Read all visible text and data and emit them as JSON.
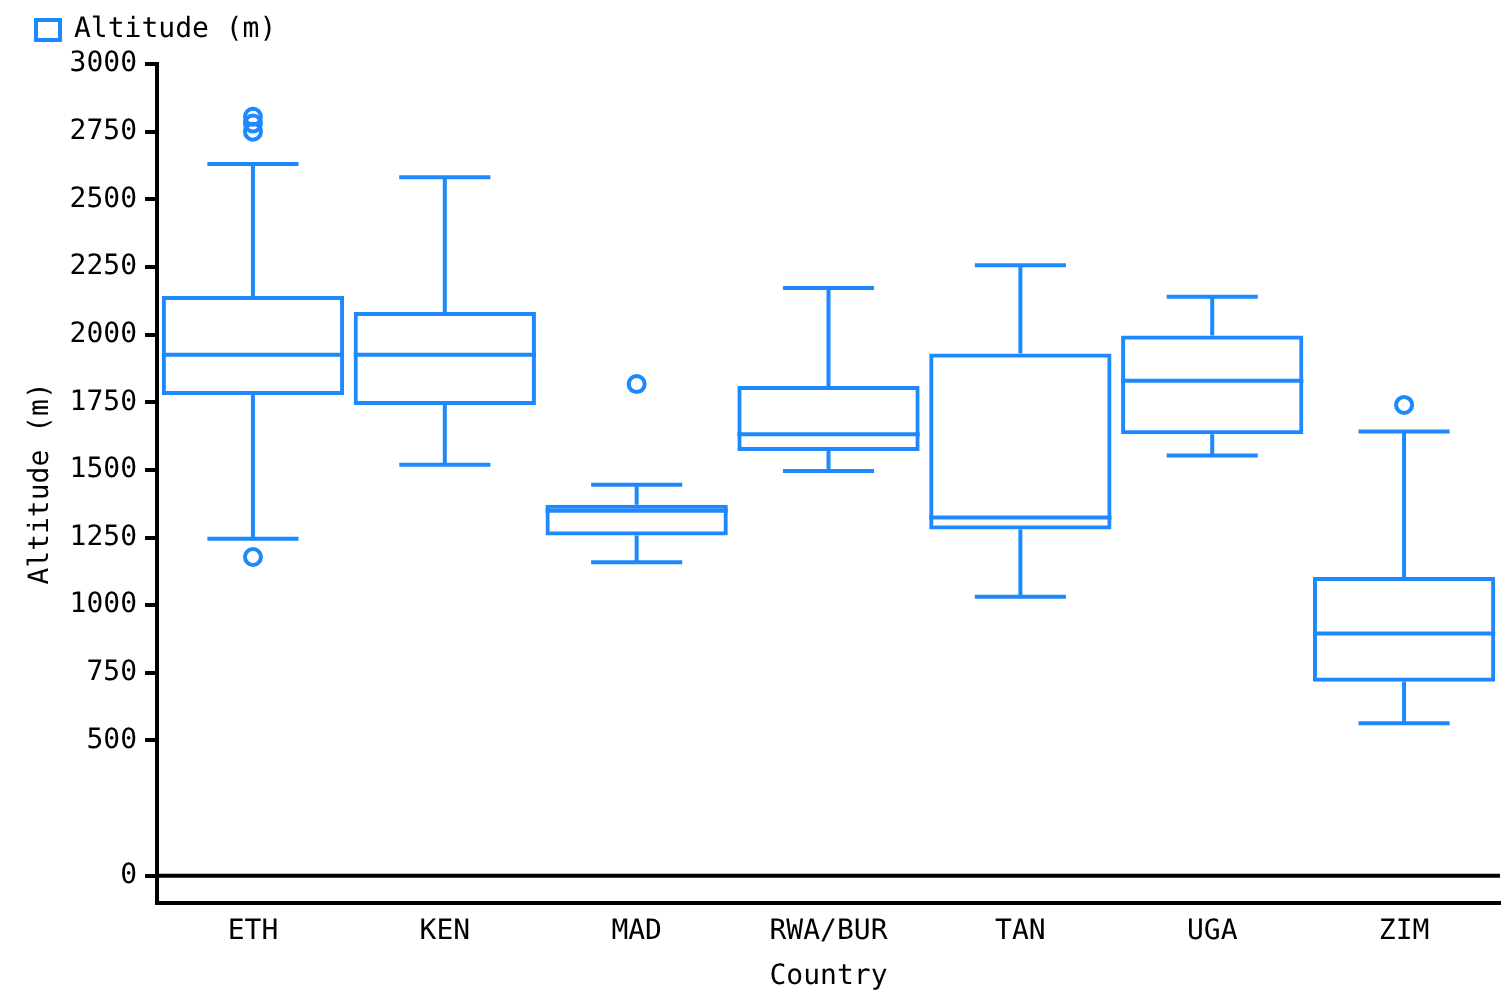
{
  "chart_data": {
    "type": "box",
    "xlabel": "Country",
    "ylabel": "Altitude (m)",
    "categories": [
      "ETH",
      "KEN",
      "MAD",
      "RWA/BUR",
      "TAN",
      "UGA",
      "ZIM"
    ],
    "series": [
      {
        "name": "Altitude (m)",
        "color": "#1e88ff",
        "boxes": [
          {
            "low": 1245,
            "q1": 1777,
            "median": 1925,
            "q3": 2143,
            "high": 2630,
            "outliers": [
              1178,
              2750,
              2780,
              2805
            ]
          },
          {
            "low": 1519,
            "q1": 1740,
            "median": 1925,
            "q3": 2083,
            "high": 2581
          },
          {
            "low": 1159,
            "q1": 1257,
            "median": 1349,
            "q3": 1371,
            "high": 1445,
            "outliers": [
              1817
            ]
          },
          {
            "low": 1496,
            "q1": 1570,
            "median": 1632,
            "q3": 1810,
            "high": 2172
          },
          {
            "low": 1031,
            "q1": 1280,
            "median": 1324,
            "q3": 1930,
            "high": 2256
          },
          {
            "low": 1553,
            "q1": 1632,
            "median": 1829,
            "q3": 1997,
            "high": 2140
          },
          {
            "low": 564,
            "q1": 717,
            "median": 895,
            "q3": 1104,
            "high": 1642,
            "outliers": [
              1740
            ]
          }
        ]
      }
    ],
    "ylim": [
      -100,
      3000
    ],
    "yticks": [
      0,
      500,
      750,
      1000,
      1250,
      1500,
      1750,
      2000,
      2250,
      2500,
      2750,
      3000
    ],
    "ref_lines": [
      {
        "axis": "y",
        "value": 0,
        "color": "#000000"
      }
    ],
    "grid": false,
    "legend": "top left"
  }
}
